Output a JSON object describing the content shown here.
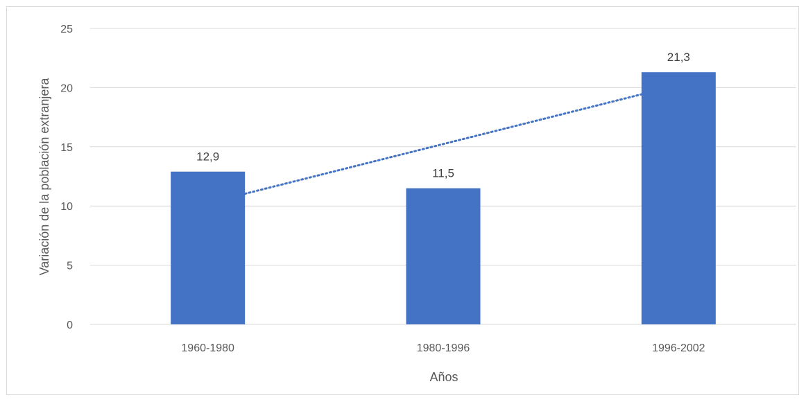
{
  "chart_data": {
    "type": "bar",
    "title": "",
    "xlabel": "Años",
    "ylabel": "Variación de la población extranjera",
    "categories": [
      "1960-1980",
      "1980-1996",
      "1996-2002"
    ],
    "values": [
      12.9,
      11.5,
      21.3
    ],
    "data_labels": [
      "12,9",
      "11,5",
      "21,3"
    ],
    "ylim": [
      0,
      25
    ],
    "yticks": [
      0,
      5,
      10,
      15,
      20,
      25
    ],
    "ytick_labels": [
      "0",
      "5",
      "10",
      "15",
      "20",
      "25"
    ],
    "grid": true,
    "legend": "none",
    "trendline": {
      "type": "linear",
      "style": "dotted"
    },
    "colors": {
      "bar": "#4472c4",
      "trendline": "#4472c4",
      "grid": "#d9d9d9"
    }
  }
}
